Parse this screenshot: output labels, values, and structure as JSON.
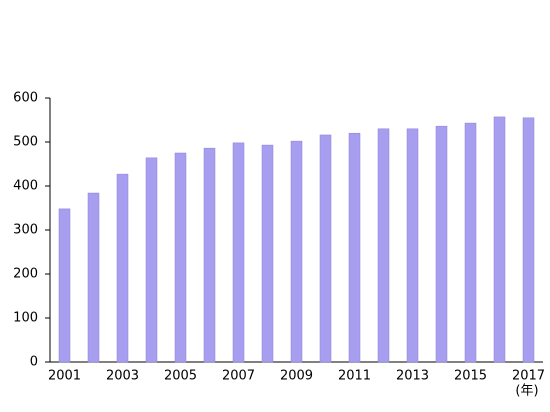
{
  "chart_data": {
    "type": "bar",
    "x_label": "(年)",
    "categories": [
      "2001",
      null,
      "2003",
      null,
      "2005",
      null,
      "2007",
      null,
      "2009",
      null,
      "2011",
      null,
      "2013",
      null,
      "2015",
      null,
      "2017"
    ],
    "values": [
      348,
      384,
      427,
      464,
      475,
      486,
      498,
      493,
      502,
      516,
      520,
      530,
      530,
      536,
      543,
      557,
      555
    ],
    "color": "#a79ef0",
    "ylim": [
      0,
      600
    ],
    "yticks": [
      0,
      100,
      200,
      300,
      400,
      500,
      600
    ],
    "grid": false
  }
}
